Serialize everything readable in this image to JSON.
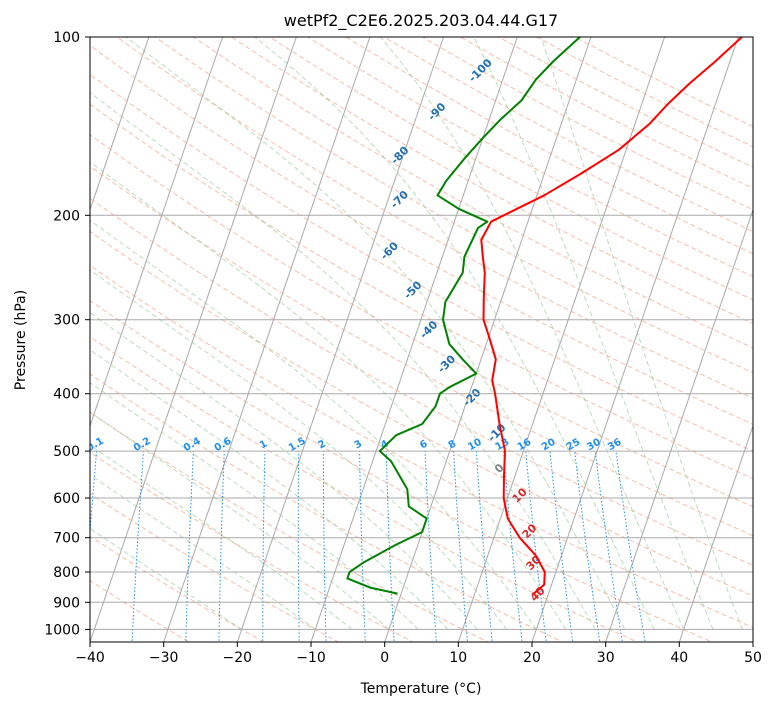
{
  "chart_data": {
    "type": "line",
    "title": "wetPf2_C2E6.2025.203.04.44.G17",
    "xlabel": "Temperature (°C)",
    "ylabel": "Pressure (hPa)",
    "xlim": [
      -40,
      50
    ],
    "ylim": [
      1050,
      100
    ],
    "y_scale": "log",
    "grid": true,
    "x_ticks": [
      -40,
      -30,
      -20,
      -10,
      0,
      10,
      20,
      30,
      40,
      50
    ],
    "y_ticks": [
      100,
      200,
      300,
      400,
      500,
      600,
      700,
      800,
      900,
      1000
    ],
    "background_lines": {
      "dry_adiabat_labels": [
        -100,
        -90,
        -80,
        -70,
        -60,
        -50,
        -40,
        -30,
        -20,
        -10
      ],
      "mixing_ratio_labels": [
        "0.1",
        "0.2",
        "0.4",
        "0.6",
        "1",
        "1.5",
        "2",
        "3",
        "4",
        "6",
        "8",
        "10",
        "13",
        "16",
        "20",
        "25",
        "30",
        "36"
      ],
      "moist_adiabat_labels": [
        0,
        10,
        20,
        30,
        40
      ],
      "colors": {
        "isotherm": "#a8a8a8",
        "dry_adiabat": "#f5a184",
        "moist_adiabat": "#8cc68c",
        "mixing_ratio": "#1f8ef1",
        "dry_label": "#1f6fb2",
        "moist_label": "#d62728",
        "moist_zero_label": "#808080"
      }
    },
    "series": [
      {
        "color": "#ff0000",
        "points": [
          [
            18.0,
            870
          ],
          [
            19.0,
            840
          ],
          [
            18.5,
            800
          ],
          [
            16.5,
            750
          ],
          [
            13.5,
            700
          ],
          [
            11.0,
            650
          ],
          [
            9.5,
            600
          ],
          [
            8.5,
            550
          ],
          [
            7.5,
            500
          ],
          [
            5.5,
            450
          ],
          [
            3.5,
            400
          ],
          [
            2.5,
            380
          ],
          [
            2.0,
            350
          ],
          [
            0.0,
            320
          ],
          [
            -1.5,
            300
          ],
          [
            -2.5,
            275
          ],
          [
            -3.5,
            250
          ],
          [
            -4.5,
            235
          ],
          [
            -5.5,
            220
          ],
          [
            -5.0,
            205
          ],
          [
            -3.0,
            198
          ],
          [
            1.0,
            185
          ],
          [
            5.0,
            170
          ],
          [
            9.0,
            155
          ],
          [
            12.0,
            140
          ],
          [
            13.5,
            130
          ],
          [
            15.5,
            120
          ],
          [
            18.0,
            110
          ],
          [
            20.5,
            100
          ]
        ]
      },
      {
        "color": "#008000",
        "points": [
          [
            -0.5,
            870
          ],
          [
            -4.5,
            850
          ],
          [
            -8.0,
            820
          ],
          [
            -8.0,
            800
          ],
          [
            -6.5,
            770
          ],
          [
            -3.0,
            720
          ],
          [
            0.0,
            685
          ],
          [
            0.0,
            650
          ],
          [
            -3.0,
            620
          ],
          [
            -4.0,
            580
          ],
          [
            -7.5,
            520
          ],
          [
            -9.5,
            500
          ],
          [
            -8.0,
            470
          ],
          [
            -5.0,
            450
          ],
          [
            -4.0,
            420
          ],
          [
            -4.0,
            400
          ],
          [
            -3.0,
            390
          ],
          [
            0.0,
            370
          ],
          [
            -2.5,
            350
          ],
          [
            -5.0,
            330
          ],
          [
            -7.0,
            300
          ],
          [
            -7.5,
            280
          ],
          [
            -6.5,
            250
          ],
          [
            -7.0,
            235
          ],
          [
            -6.5,
            210
          ],
          [
            -5.5,
            205
          ],
          [
            -10.0,
            195
          ],
          [
            -13.5,
            185
          ],
          [
            -13.0,
            175
          ],
          [
            -11.5,
            160
          ],
          [
            -10.0,
            148
          ],
          [
            -8.5,
            138
          ],
          [
            -6.5,
            128
          ],
          [
            -5.5,
            118
          ],
          [
            -4.0,
            110
          ],
          [
            -1.5,
            100
          ]
        ]
      }
    ]
  }
}
